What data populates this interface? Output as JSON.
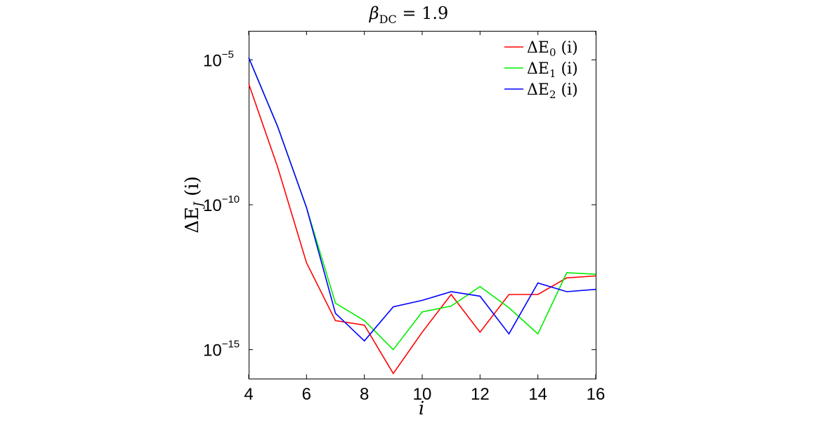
{
  "chart_data": {
    "type": "line",
    "title": "β_DC = 1.9",
    "title_parts": {
      "symbol": "β",
      "subscript": "DC",
      "rest": " = 1.9"
    },
    "xlabel": "i",
    "ylabel": "ΔE_J (i)",
    "ylabel_parts": {
      "prefix": "ΔE",
      "subscript": "J",
      "suffix": " (i)"
    },
    "x_scale": "linear",
    "y_scale": "log",
    "xlim": [
      4,
      16
    ],
    "ylim": [
      1e-16,
      0.0001
    ],
    "x_ticks": [
      4,
      6,
      8,
      10,
      12,
      14,
      16
    ],
    "x_tick_labels": [
      "4",
      "6",
      "8",
      "10",
      "12",
      "14",
      "16"
    ],
    "y_ticks": [
      {
        "value": 1e-15,
        "base": "10",
        "exponent": "−15"
      },
      {
        "value": 1e-10,
        "base": "10",
        "exponent": "−10"
      },
      {
        "value": 1e-05,
        "base": "10",
        "exponent": "−5"
      }
    ],
    "grid": false,
    "legend_position": "top-right",
    "x": [
      4,
      5,
      6,
      7,
      8,
      9,
      10,
      11,
      12,
      13,
      14,
      15,
      16
    ],
    "series": [
      {
        "name": "ΔE_0 (i)",
        "legend_parts": {
          "prefix": "ΔE",
          "subscript": "0",
          "suffix": " (i)"
        },
        "color": "#ff0000",
        "values": [
          1.5e-06,
          2e-09,
          1e-12,
          1e-14,
          7e-15,
          1.5e-16,
          4e-15,
          8e-14,
          4e-15,
          8e-14,
          8e-14,
          3e-13,
          3.5e-13
        ]
      },
      {
        "name": "ΔE_1 (i)",
        "legend_parts": {
          "prefix": "ΔE",
          "subscript": "1",
          "suffix": " (i)"
        },
        "color": "#00ee00",
        "values": [
          1.2e-05,
          5e-08,
          8e-11,
          4e-14,
          1e-14,
          1e-15,
          2e-14,
          3.2e-14,
          1.5e-13,
          2.8e-14,
          3.5e-15,
          4.5e-13,
          4e-13
        ]
      },
      {
        "name": "ΔE_2 (i)",
        "legend_parts": {
          "prefix": "ΔE",
          "subscript": "2",
          "suffix": " (i)"
        },
        "color": "#0000ff",
        "values": [
          1.2e-05,
          5e-08,
          8e-11,
          1.8e-14,
          2e-15,
          3e-14,
          5e-14,
          1e-13,
          7e-14,
          3.5e-15,
          2e-13,
          1e-13,
          1.2e-13
        ]
      }
    ]
  }
}
